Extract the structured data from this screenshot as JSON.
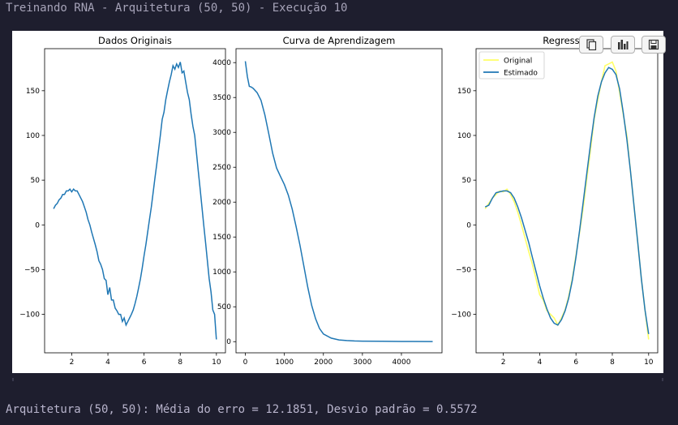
{
  "header": {
    "title": "Treinando RNA - Arquitetura (50, 50) - Execução 10"
  },
  "footer": {
    "summary": "Arquitetura (50, 50): Média do erro = 12.1851, Desvio padrão = 0.5572"
  },
  "toolbar": {
    "icons": [
      "copy-icon",
      "bar-chart-icon",
      "save-icon"
    ]
  },
  "colors": {
    "line": "#1f77b4",
    "original": "#ffff66",
    "background": "#1e1e2e"
  },
  "chart_data": [
    {
      "type": "line",
      "title": "Dados Originais",
      "xlim": [
        0.5,
        10.5
      ],
      "ylim": [
        -143,
        197
      ],
      "xticks": [
        2,
        4,
        6,
        8,
        10
      ],
      "yticks": [
        -100,
        -50,
        0,
        50,
        100,
        150
      ],
      "series": [
        {
          "x": [
            1.0,
            1.1,
            1.2,
            1.3,
            1.4,
            1.5,
            1.6,
            1.7,
            1.8,
            1.9,
            2.0,
            2.1,
            2.2,
            2.3,
            2.4,
            2.5,
            2.6,
            2.7,
            2.8,
            2.9,
            3.0,
            3.1,
            3.2,
            3.3,
            3.4,
            3.5,
            3.6,
            3.7,
            3.8,
            3.9,
            4.0,
            4.1,
            4.2,
            4.3,
            4.4,
            4.5,
            4.6,
            4.7,
            4.8,
            4.9,
            5.0,
            5.1,
            5.2,
            5.3,
            5.4,
            5.5,
            5.6,
            5.7,
            5.8,
            5.9,
            6.0,
            6.1,
            6.2,
            6.3,
            6.4,
            6.5,
            6.6,
            6.7,
            6.8,
            6.9,
            7.0,
            7.1,
            7.2,
            7.3,
            7.4,
            7.5,
            7.6,
            7.7,
            7.8,
            7.9,
            8.0,
            8.1,
            8.2,
            8.3,
            8.4,
            8.5,
            8.6,
            8.7,
            8.8,
            8.9,
            9.0,
            9.1,
            9.2,
            9.3,
            9.4,
            9.5,
            9.6,
            9.7,
            9.8,
            9.9,
            10.0
          ],
          "y": [
            18,
            22,
            24,
            28,
            30,
            34,
            34,
            38,
            38,
            40,
            37,
            40,
            38,
            38,
            34,
            30,
            26,
            20,
            14,
            6,
            0,
            -8,
            -15,
            -22,
            -30,
            -40,
            -44,
            -50,
            -60,
            -62,
            -78,
            -70,
            -84,
            -84,
            -93,
            -96,
            -100,
            -100,
            -108,
            -104,
            -112,
            -108,
            -104,
            -100,
            -95,
            -88,
            -80,
            -70,
            -60,
            -48,
            -34,
            -22,
            -8,
            6,
            20,
            36,
            52,
            68,
            84,
            100,
            118,
            126,
            140,
            150,
            160,
            168,
            178,
            174,
            180,
            176,
            182,
            170,
            172,
            160,
            148,
            140,
            124,
            110,
            100,
            80,
            60,
            40,
            20,
            0,
            -20,
            -40,
            -60,
            -75,
            -95,
            -100,
            -128
          ]
        }
      ]
    },
    {
      "type": "line",
      "title": "Curva de Aprendizagem",
      "xlim": [
        -240,
        5040
      ],
      "ylim": [
        -160,
        4200
      ],
      "xticks": [
        0,
        1000,
        2000,
        3000,
        4000
      ],
      "yticks": [
        0,
        500,
        1000,
        1500,
        2000,
        2500,
        3000,
        3500,
        4000
      ],
      "series": [
        {
          "x": [
            0,
            50,
            100,
            150,
            200,
            300,
            400,
            500,
            600,
            700,
            800,
            900,
            1000,
            1100,
            1200,
            1300,
            1400,
            1500,
            1600,
            1700,
            1800,
            1900,
            2000,
            2200,
            2400,
            2600,
            2800,
            3000,
            3500,
            4000,
            4800
          ],
          "y": [
            4020,
            3800,
            3660,
            3650,
            3630,
            3570,
            3460,
            3250,
            2980,
            2700,
            2490,
            2370,
            2250,
            2100,
            1900,
            1650,
            1380,
            1080,
            780,
            520,
            330,
            190,
            110,
            50,
            25,
            15,
            10,
            8,
            5,
            3,
            2
          ]
        }
      ]
    },
    {
      "type": "line",
      "title": "Regressão",
      "xlim": [
        0.5,
        10.5
      ],
      "ylim": [
        -143,
        197
      ],
      "xticks": [
        2,
        4,
        6,
        8,
        10
      ],
      "yticks": [
        -100,
        -50,
        0,
        50,
        100,
        150
      ],
      "legend": {
        "position": "top-left"
      },
      "series": [
        {
          "name": "Original",
          "color": "#ffff66",
          "x": [
            1.0,
            1.2,
            1.4,
            1.6,
            1.8,
            2.0,
            2.2,
            2.4,
            2.6,
            2.8,
            3.0,
            3.2,
            3.4,
            3.6,
            3.8,
            4.0,
            4.2,
            4.4,
            4.6,
            4.8,
            5.0,
            5.2,
            5.4,
            5.6,
            5.8,
            6.0,
            6.2,
            6.4,
            6.6,
            6.8,
            7.0,
            7.2,
            7.4,
            7.6,
            7.8,
            8.0,
            8.2,
            8.4,
            8.6,
            8.8,
            9.0,
            9.2,
            9.4,
            9.6,
            9.8,
            10.0
          ],
          "y": [
            18,
            24,
            30,
            34,
            38,
            37,
            40,
            34,
            26,
            14,
            0,
            -15,
            -30,
            -44,
            -60,
            -78,
            -84,
            -96,
            -100,
            -104,
            -112,
            -104,
            -95,
            -80,
            -60,
            -34,
            -8,
            20,
            52,
            84,
            118,
            140,
            160,
            178,
            180,
            182,
            172,
            148,
            124,
            100,
            60,
            20,
            -20,
            -60,
            -95,
            -128
          ]
        },
        {
          "name": "Estimado",
          "color": "#1f77b4",
          "x": [
            1.0,
            1.2,
            1.4,
            1.6,
            1.8,
            2.0,
            2.2,
            2.4,
            2.6,
            2.8,
            3.0,
            3.2,
            3.4,
            3.6,
            3.8,
            4.0,
            4.2,
            4.4,
            4.6,
            4.8,
            5.0,
            5.2,
            5.4,
            5.6,
            5.8,
            6.0,
            6.2,
            6.4,
            6.6,
            6.8,
            7.0,
            7.2,
            7.4,
            7.6,
            7.8,
            8.0,
            8.2,
            8.4,
            8.6,
            8.8,
            9.0,
            9.2,
            9.4,
            9.6,
            9.8,
            10.0
          ],
          "y": [
            20,
            22,
            30,
            36,
            37,
            38,
            38,
            36,
            30,
            20,
            8,
            -6,
            -20,
            -36,
            -52,
            -68,
            -82,
            -94,
            -104,
            -110,
            -112,
            -106,
            -96,
            -82,
            -62,
            -36,
            -6,
            26,
            58,
            90,
            120,
            144,
            160,
            170,
            176,
            174,
            168,
            152,
            126,
            96,
            60,
            20,
            -20,
            -60,
            -95,
            -122
          ]
        }
      ]
    }
  ]
}
